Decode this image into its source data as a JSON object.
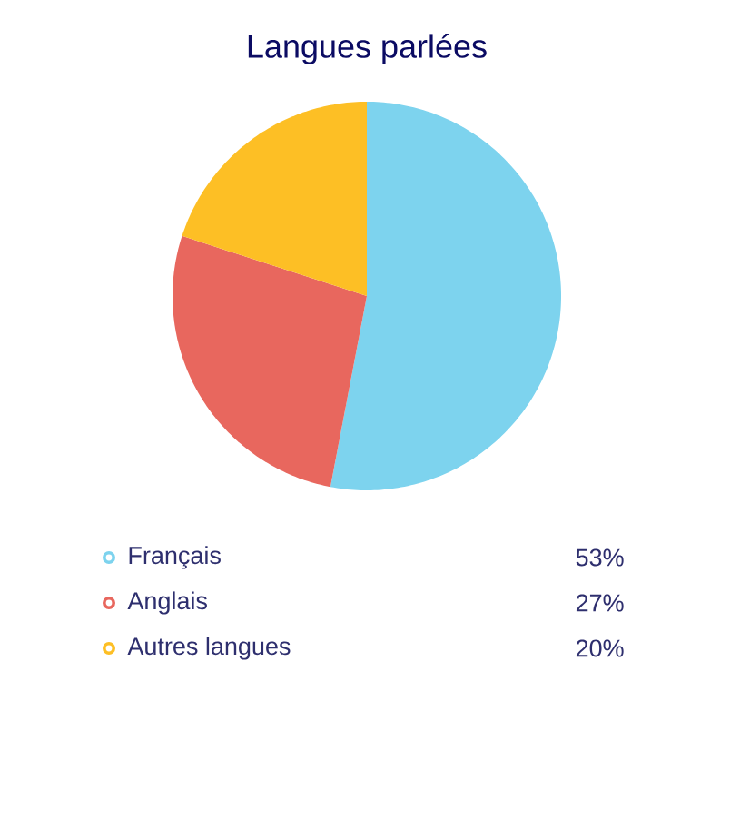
{
  "chart_data": {
    "type": "pie",
    "title": "Langues parlées",
    "categories": [
      "Français",
      "Anglais",
      "Autres langues"
    ],
    "values": [
      53,
      27,
      20
    ],
    "colors": [
      "#7dd3ee",
      "#e8675e",
      "#fdbf25"
    ],
    "value_labels": [
      "53%",
      "27%",
      "20%"
    ],
    "legend": "bottom"
  }
}
